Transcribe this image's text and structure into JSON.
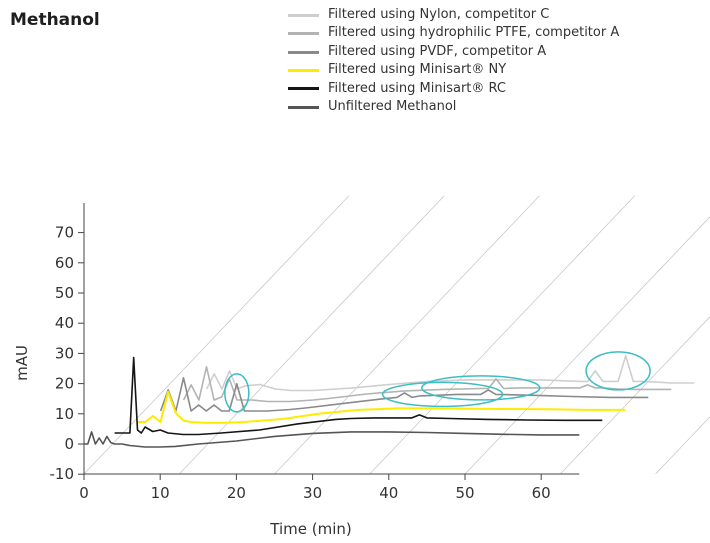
{
  "chart_data": {
    "type": "line",
    "title": "Methanol",
    "xlabel": "Time (min)",
    "ylabel": "mAU",
    "xlim": [
      0,
      65
    ],
    "ylim": [
      -10,
      75
    ],
    "x_ticks": [
      "0",
      "10",
      "20",
      "30",
      "40",
      "50",
      "60"
    ],
    "y_ticks": [
      "-10",
      "0",
      "10",
      "20",
      "30",
      "40",
      "50",
      "60",
      "70"
    ],
    "legend_position": "top-right",
    "series": [
      {
        "name": "Filtered using Nylon, competitor C",
        "color": "#cfcfcf",
        "x": [
          1,
          2,
          3,
          4,
          5,
          6,
          8,
          10,
          12,
          15,
          18,
          20,
          25,
          30,
          35,
          40,
          45,
          50,
          51,
          52,
          53,
          54,
          55,
          56,
          57,
          58,
          60,
          62,
          65
        ],
        "y": [
          0,
          5,
          0,
          6,
          0,
          1,
          1.5,
          0,
          -0.5,
          -0.5,
          0,
          0.3,
          1.5,
          2.5,
          3,
          3,
          3,
          2.5,
          2.5,
          6,
          2.5,
          2.5,
          2.5,
          11,
          2.5,
          2.5,
          2.3,
          2,
          2
        ]
      },
      {
        "name": "Filtered using hydrophilic PTFE, competitor A",
        "color": "#b3b3b3",
        "x": [
          1,
          2,
          3,
          4,
          5,
          6,
          7,
          8,
          10,
          12,
          15,
          18,
          20,
          25,
          30,
          35,
          40,
          41,
          42,
          43,
          45,
          50,
          53,
          54,
          55,
          56,
          58,
          60,
          62,
          65
        ],
        "y": [
          0,
          5,
          0,
          11,
          0,
          1,
          7,
          0,
          0,
          -0.5,
          -0.5,
          0,
          0.5,
          2,
          3,
          3.5,
          3.8,
          3.8,
          7,
          3.8,
          4,
          4,
          4,
          5,
          4,
          4,
          3.6,
          3.5,
          3.5,
          3.5
        ]
      },
      {
        "name": "Filtered using PVDF, competitor A",
        "color": "#8a8a8a",
        "x": [
          1,
          2,
          3,
          4,
          5,
          6,
          7,
          8,
          9,
          10,
          11,
          12,
          13,
          15,
          18,
          20,
          25,
          30,
          32,
          33,
          34,
          35,
          40,
          43,
          44,
          45,
          50,
          55,
          60,
          65
        ],
        "y": [
          0,
          7,
          0,
          11,
          0,
          2,
          0,
          2,
          0,
          0,
          9,
          0,
          0,
          0,
          0.5,
          1,
          2.5,
          4,
          4.5,
          6,
          4.5,
          5,
          5.5,
          5.5,
          7,
          5.5,
          5.2,
          4.8,
          4.5,
          4.5
        ]
      },
      {
        "name": "Filtered using Minisart® NY",
        "color": "#ffeb00",
        "x": [
          1,
          2,
          3,
          4,
          5,
          6,
          7,
          8,
          10,
          12,
          15,
          20,
          25,
          30,
          32,
          35,
          40,
          45,
          50,
          55,
          60,
          65
        ],
        "y": [
          0,
          0,
          2,
          0,
          10,
          3,
          0.5,
          0,
          -0.3,
          -0.3,
          0,
          1,
          2.8,
          4,
          4.2,
          4.5,
          4.5,
          4.4,
          4.3,
          4.2,
          4,
          4
        ]
      },
      {
        "name": "Filtered using Minisart® RC",
        "color": "#151515",
        "x": [
          1,
          2,
          3,
          3.5,
          4,
          4.5,
          5,
          6,
          7,
          8,
          10,
          12,
          15,
          20,
          25,
          30,
          32,
          35,
          40,
          41,
          42,
          45,
          50,
          55,
          60,
          65
        ],
        "y": [
          0,
          0,
          0,
          25,
          1,
          0,
          2,
          0.5,
          1,
          0,
          -0.5,
          -0.5,
          0,
          1,
          3,
          4.5,
          4.8,
          5,
          5,
          6,
          5,
          4.8,
          4.5,
          4.3,
          4.2,
          4.2
        ]
      },
      {
        "name": "Unfiltered Methanol",
        "color": "#555555",
        "x": [
          0,
          0.5,
          1,
          1.5,
          2,
          2.5,
          3,
          3.5,
          4,
          5,
          6,
          8,
          10,
          12,
          15,
          20,
          25,
          30,
          35,
          40,
          45,
          50,
          55,
          60,
          65
        ],
        "y": [
          0,
          0,
          4,
          0,
          2,
          0,
          2.5,
          0.5,
          0,
          0,
          -0.5,
          -1,
          -1,
          -0.8,
          0,
          1,
          2.5,
          3.5,
          4,
          4,
          3.8,
          3.5,
          3.2,
          3,
          3
        ]
      }
    ],
    "annotations": [
      {
        "shape": "ellipse",
        "series": "Filtered using Nylon, competitor C",
        "x": 55,
        "y": 6
      },
      {
        "shape": "ellipse",
        "series": "Filtered using hydrophilic PTFE, competitor A",
        "x": 40,
        "y": 4
      },
      {
        "shape": "ellipse",
        "series": "Filtered using PVDF, competitor A",
        "x": 11,
        "y": 6
      },
      {
        "shape": "ellipse",
        "series": "Filtered using PVDF, competitor A",
        "x": 38,
        "y": 5.5
      }
    ]
  }
}
